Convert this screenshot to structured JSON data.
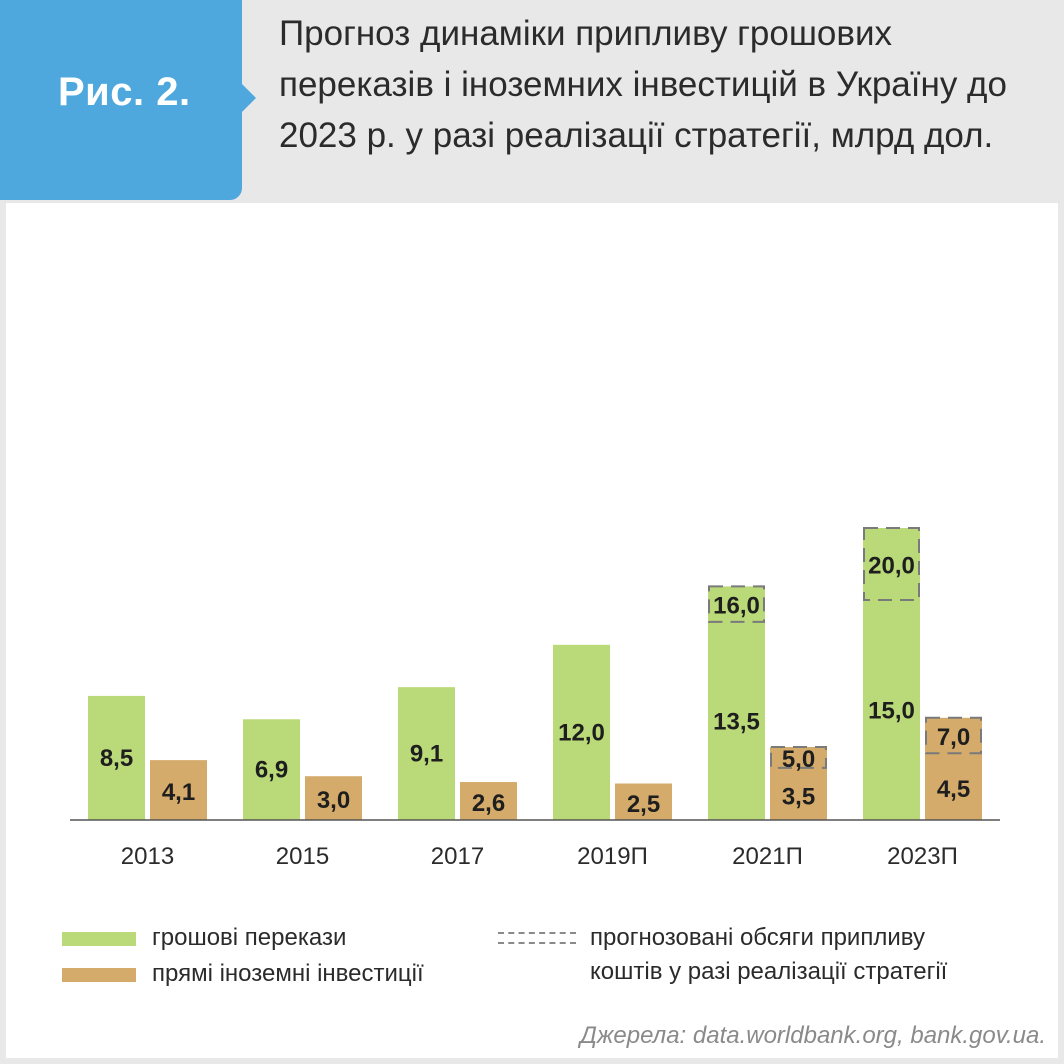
{
  "figure": {
    "label": "Рис. 2.",
    "title": "Прогноз динаміки припливу грошових переказів і іноземних інвестицій в Україну до 2023 р. у разі реалізації стратегії, млрд дол."
  },
  "colors": {
    "remittances": "#bad979",
    "fdi": "#d4ab6a",
    "accent": "#4fa8dd",
    "dashed": "#7a7a7a"
  },
  "legend": {
    "remittances": "грошові перекази",
    "fdi": "прямі іноземні інвестиції",
    "forecast_line1": "прогнозовані обсяги припливу",
    "forecast_line2": "коштів у разі реалізації стратегії"
  },
  "source": "Джерела: data.worldbank.org, bank.gov.ua.",
  "chart_data": {
    "type": "bar",
    "categories": [
      "2013",
      "2015",
      "2017",
      "2019П",
      "2021П",
      "2023П"
    ],
    "series": [
      {
        "name": "грошові перекази",
        "values": [
          8.5,
          6.9,
          9.1,
          12.0,
          13.5,
          15.0
        ],
        "labels": [
          "8,5",
          "6,9",
          "9,1",
          "12,0",
          "13,5",
          "15,0"
        ],
        "forecast_values": [
          null,
          null,
          null,
          null,
          16.0,
          20.0
        ],
        "forecast_labels": [
          null,
          null,
          null,
          null,
          "16,0",
          "20,0"
        ]
      },
      {
        "name": "прямі іноземні інвестиції",
        "values": [
          4.1,
          3.0,
          2.6,
          2.5,
          3.5,
          4.5
        ],
        "labels": [
          "4,1",
          "3,0",
          "2,6",
          "2,5",
          "3,5",
          "4,5"
        ],
        "forecast_values": [
          null,
          null,
          null,
          null,
          5.0,
          7.0
        ],
        "forecast_labels": [
          null,
          null,
          null,
          null,
          "5,0",
          "7,0"
        ]
      }
    ],
    "forecast_style": "dashed outline",
    "legend_position": "bottom",
    "grid": false
  }
}
